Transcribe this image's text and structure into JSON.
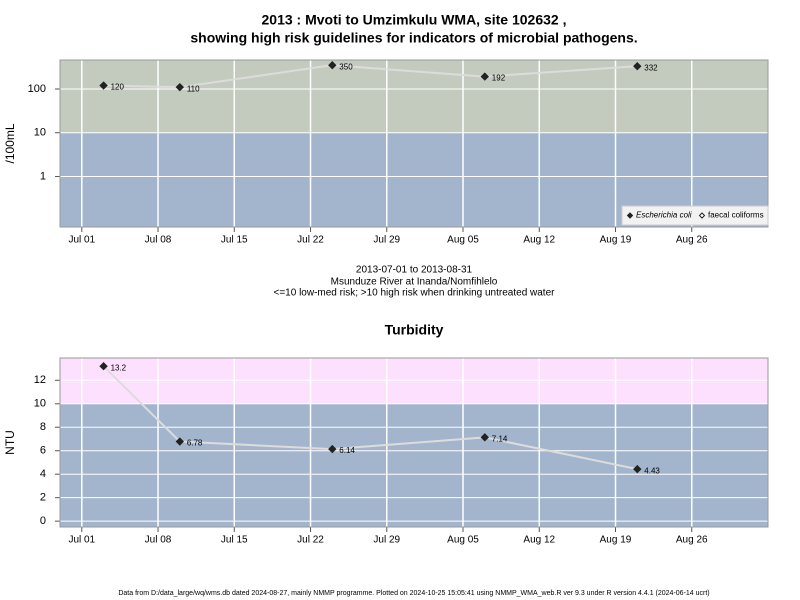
{
  "chart_data": [
    {
      "type": "line",
      "title": [
        "2013 : Mvoti to Umzimkulu WMA, site 102632 ,",
        "showing high risk guidelines for indicators of microbial pathogens."
      ],
      "ylabel": "/100mL",
      "x": [
        "Jul 03",
        "Jul 10",
        "Jul 24",
        "Aug 07",
        "Aug 21"
      ],
      "series": [
        {
          "name": "Escherichia coli",
          "color": "#222222",
          "line_color": "#dcdcdc",
          "marker": "filled-diamond",
          "values": [
            120,
            110,
            350,
            192,
            332
          ]
        },
        {
          "name": "faecal coliforms",
          "color": "#222222",
          "line_color": "#dcdcdc",
          "marker": "open-diamond",
          "values": [
            null,
            null,
            null,
            null,
            null
          ]
        }
      ],
      "log_scale": true,
      "ylim": [
        0.07,
        460
      ],
      "yticks": [
        1,
        10,
        100
      ],
      "xlim": [
        "Jun 29",
        "Sep 02"
      ],
      "xticks": [
        "Jul 01",
        "Jul 08",
        "Jul 15",
        "Jul 22",
        "Jul 29",
        "Aug 05",
        "Aug 12",
        "Aug 19",
        "Aug 26"
      ],
      "threshold": 10,
      "below_color": "#a2b5cd",
      "above_color": "#c3cbbf",
      "grid": true,
      "legend": "bottom-right"
    },
    {
      "type": "line",
      "title": [
        "Turbidity"
      ],
      "ylabel": "NTU",
      "x": [
        "Jul 03",
        "Jul 10",
        "Jul 24",
        "Aug 07",
        "Aug 21"
      ],
      "series": [
        {
          "color": "#222222",
          "line_color": "#dcdcdc",
          "marker": "filled-diamond",
          "values": [
            13.2,
            6.78,
            6.14,
            7.14,
            4.43
          ]
        }
      ],
      "log_scale": false,
      "ylim": [
        -0.5,
        13.9
      ],
      "yticks": [
        0,
        2,
        4,
        6,
        8,
        10,
        12
      ],
      "xlim": [
        "Jun 29",
        "Sep 02"
      ],
      "xticks": [
        "Jul 01",
        "Jul 08",
        "Jul 15",
        "Jul 22",
        "Jul 29",
        "Aug 05",
        "Aug 12",
        "Aug 19",
        "Aug 26"
      ],
      "threshold": 10,
      "below_color": "#a2b5cd",
      "above_color": "#fde0fd",
      "grid": true
    }
  ],
  "caption": [
    "2013-07-01 to 2013-08-31",
    "Msunduze River at Inanda/Nomfihlelo",
    "<=10 low-med risk; >10 high risk when drinking untreated water"
  ],
  "footer": "Data from D:/data_large/wq/wms.db dated 2024-08-27, mainly NMMP programme. Plotted on 2024-10-25 15:05:41 using NMMP_WMA_web.R ver 9.3 under R version 4.4.1 (2024-06-14 ucrt)"
}
